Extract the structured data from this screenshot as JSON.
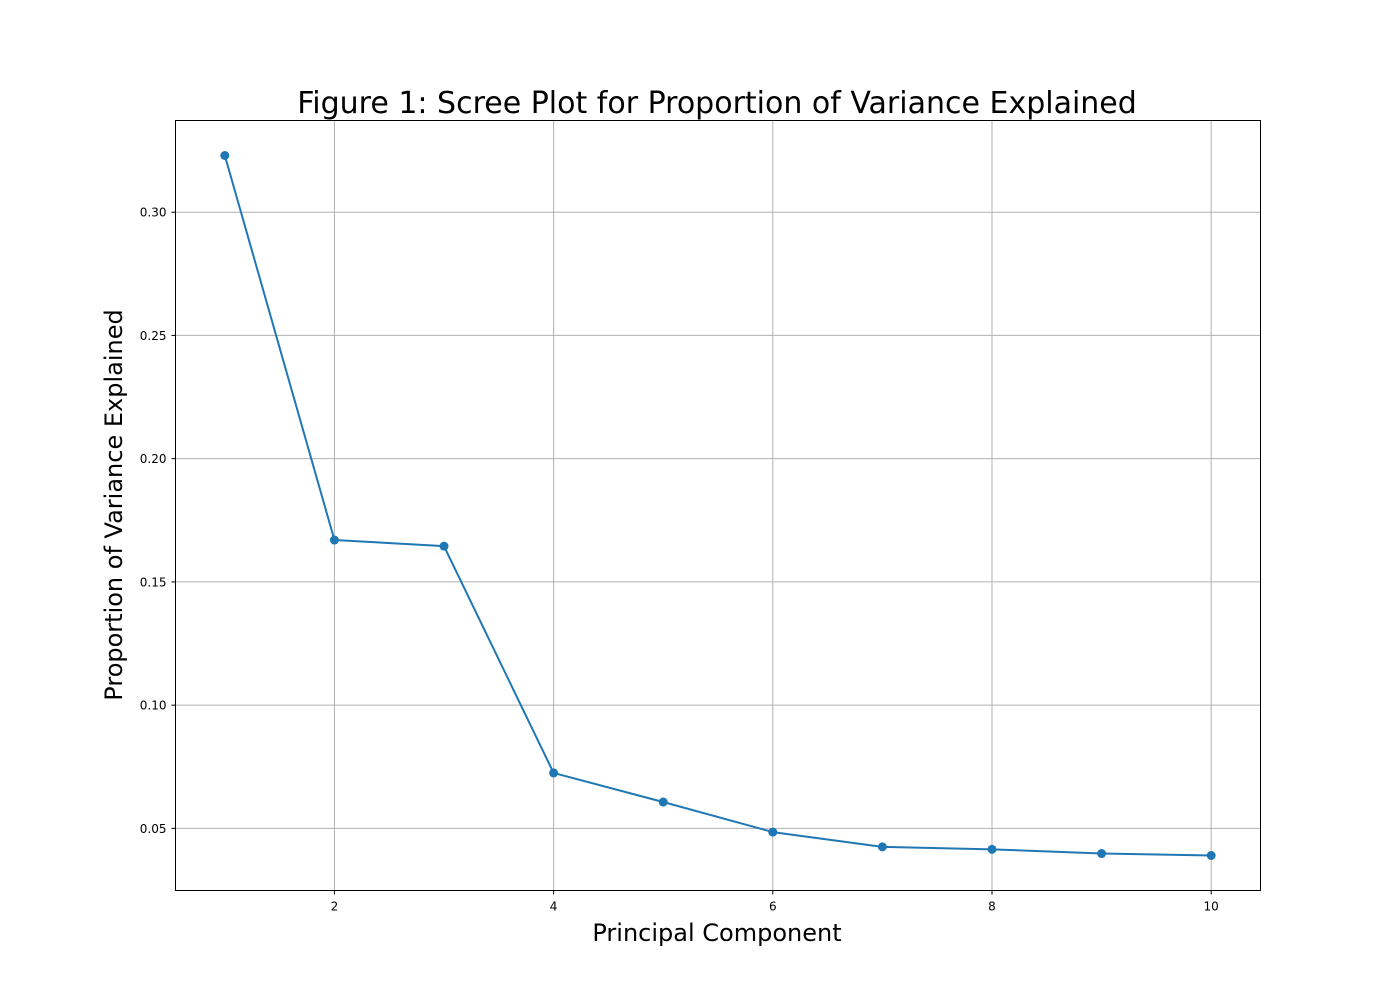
{
  "chart_data": {
    "type": "line",
    "title": "Figure 1: Scree Plot for Proportion of Variance Explained",
    "xlabel": "Principal Component",
    "ylabel": "Proportion of Variance Explained",
    "x": [
      1,
      2,
      3,
      4,
      5,
      6,
      7,
      8,
      9,
      10
    ],
    "series": [
      {
        "values": [
          0.323,
          0.167,
          0.1645,
          0.0725,
          0.0607,
          0.0485,
          0.0425,
          0.0415,
          0.0398,
          0.039
        ],
        "color": "#1f77b4",
        "marker": "circle"
      }
    ],
    "xticks": [
      2,
      4,
      6,
      8,
      10
    ],
    "xtick_labels": [
      "2",
      "4",
      "6",
      "8",
      "10"
    ],
    "yticks": [
      0.05,
      0.1,
      0.15,
      0.2,
      0.25,
      0.3
    ],
    "ytick_labels": [
      "0.05",
      "0.10",
      "0.15",
      "0.20",
      "0.25",
      "0.30"
    ],
    "xlim": [
      0.55,
      10.45
    ],
    "ylim": [
      0.0248,
      0.3372
    ],
    "grid": true,
    "legend": "none"
  }
}
